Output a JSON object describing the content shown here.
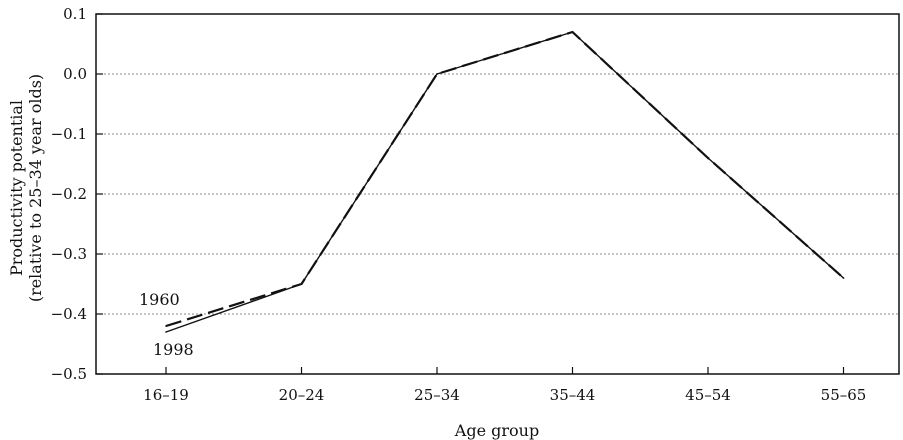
{
  "chart_data": {
    "type": "line",
    "title": "",
    "xlabel": "Age group",
    "ylabel": "Productivity potential",
    "ylabel_line2": "(relative to 25–34 year olds)",
    "categories": [
      "16–19",
      "20–24",
      "25–34",
      "35–44",
      "45–54",
      "55–65"
    ],
    "yticks": [
      "0.1",
      "0.0",
      "−0.1",
      "−0.2",
      "−0.3",
      "−0.4",
      "−0.5"
    ],
    "ylim": [
      -0.5,
      0.1
    ],
    "grid": true,
    "series": [
      {
        "name": "1960",
        "values": [
          -0.42,
          -0.35,
          0.0,
          0.07,
          -0.14,
          -0.34
        ],
        "color": "#111111",
        "style": "dashed"
      },
      {
        "name": "1998",
        "values": [
          -0.43,
          -0.35,
          0.0,
          0.07,
          -0.14,
          -0.34
        ],
        "color": "#111111",
        "style": "solid"
      }
    ]
  }
}
